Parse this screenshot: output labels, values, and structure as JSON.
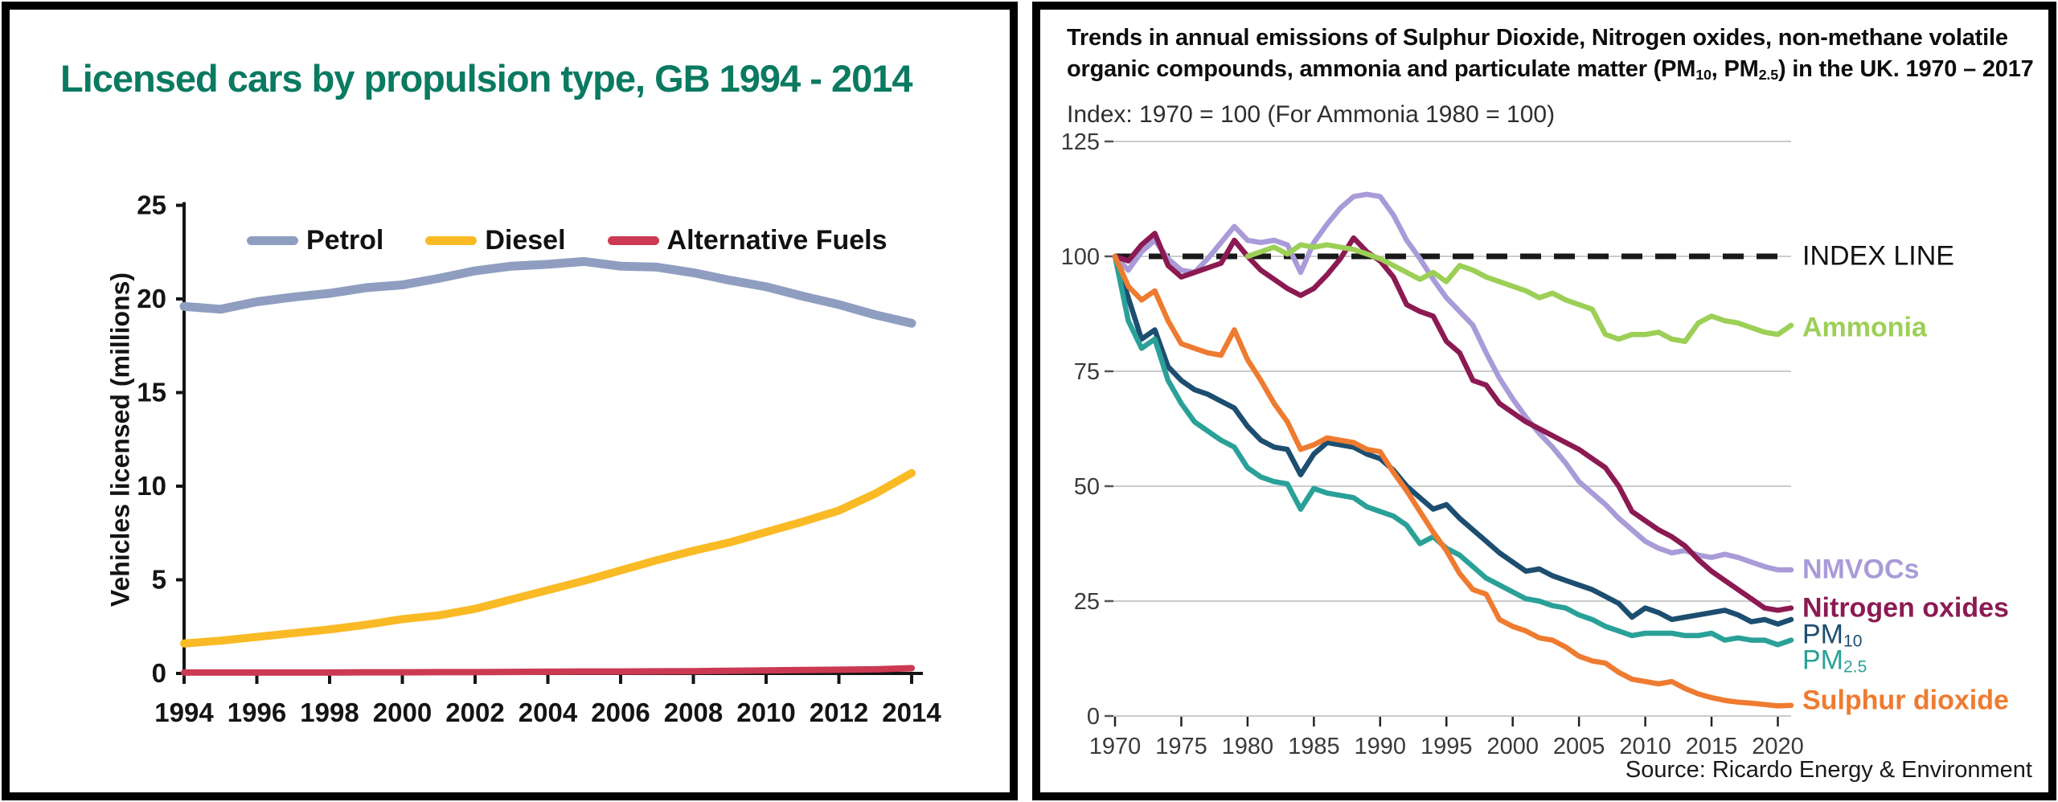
{
  "page": {
    "background": "#ffffff",
    "panel_border_color": "#000000"
  },
  "chart_data": [
    {
      "type": "line",
      "panel": "left",
      "title": "Licensed cars by propulsion type, GB 1994 - 2014",
      "title_color": "#0a7a61",
      "ylabel": "Vehicles licensed (millions)",
      "xlabel": "",
      "x": {
        "start": 1994,
        "end": 2014,
        "step": 1
      },
      "xlim": [
        1994,
        2014
      ],
      "ylim": [
        0,
        25
      ],
      "yticks": [
        0,
        5,
        10,
        15,
        20,
        25
      ],
      "xticks": [
        1994,
        1996,
        1998,
        2000,
        2002,
        2004,
        2006,
        2008,
        2010,
        2012,
        2014
      ],
      "grid": false,
      "legend_position": "top-inside",
      "axis_color": "#141414",
      "series": [
        {
          "name": "Petrol",
          "color": "#8f9ec0",
          "values": [
            19.6,
            19.45,
            19.85,
            20.1,
            20.3,
            20.6,
            20.75,
            21.1,
            21.5,
            21.75,
            21.85,
            22.0,
            21.75,
            21.7,
            21.4,
            21.0,
            20.65,
            20.15,
            19.7,
            19.15,
            18.7
          ]
        },
        {
          "name": "Diesel",
          "color": "#f9ba25",
          "values": [
            1.6,
            1.75,
            1.95,
            2.15,
            2.35,
            2.6,
            2.9,
            3.1,
            3.45,
            3.95,
            4.45,
            4.95,
            5.5,
            6.05,
            6.55,
            7.0,
            7.55,
            8.1,
            8.7,
            9.6,
            10.7
          ]
        },
        {
          "name": "Alternative Fuels",
          "color": "#cb3a52",
          "values": [
            0.05,
            0.05,
            0.05,
            0.05,
            0.05,
            0.06,
            0.06,
            0.07,
            0.07,
            0.08,
            0.09,
            0.1,
            0.1,
            0.11,
            0.12,
            0.14,
            0.16,
            0.18,
            0.2,
            0.22,
            0.28
          ]
        }
      ]
    },
    {
      "type": "line",
      "panel": "right",
      "title_parts": [
        {
          "t": "Trends in annual emissions of Sulphur Dioxide, Nitrogen oxides, non-methane volatile organic compounds, ammonia and particulate matter (PM"
        },
        {
          "t": "10",
          "sub": true
        },
        {
          "t": ", PM"
        },
        {
          "t": "2.5",
          "sub": true
        },
        {
          "t": ") in the UK. 1970 – 2017"
        }
      ],
      "subtitle": "Index: 1970 = 100 (For Ammonia 1980 = 100)",
      "source": "Source: Ricardo Energy & Environment",
      "x": {
        "start": 1970,
        "end": 2021,
        "step": 1
      },
      "xlim": [
        1970,
        2021.5
      ],
      "ylim": [
        0,
        125
      ],
      "yticks": [
        0,
        25,
        50,
        75,
        100,
        125
      ],
      "xticks": [
        1970,
        1975,
        1980,
        1985,
        1990,
        1995,
        2000,
        2005,
        2010,
        2015,
        2020
      ],
      "grid": true,
      "grid_color": "#cbcbcb",
      "tick_label_color": "#3a3a3a",
      "index_line": {
        "value": 100,
        "label": "INDEX LINE",
        "color": "#191919"
      },
      "series": [
        {
          "name": "NMVOCs",
          "color": "#a99bd8",
          "start_year": 1970,
          "label_parts": [
            {
              "t": "NMVOCs"
            }
          ],
          "label_bold": true,
          "label_y_value": 31.8,
          "values": [
            100,
            97,
            101,
            103.5,
            99.5,
            97,
            96.5,
            99.5,
            103,
            106.5,
            103.5,
            103,
            103.5,
            102.5,
            96.5,
            103,
            107,
            110.5,
            113,
            113.5,
            113,
            109,
            103.5,
            99.5,
            95,
            91,
            88,
            85,
            79,
            73.5,
            69,
            65,
            61.5,
            58.5,
            55,
            51,
            48.5,
            46,
            43,
            40.5,
            38,
            36.5,
            35.5,
            36,
            35,
            34.5,
            35.2,
            34.5,
            33.5,
            32.5,
            31.8,
            31.8
          ]
        },
        {
          "name": "Nitrogen oxides",
          "color": "#8c1a52",
          "start_year": 1970,
          "label_parts": [
            {
              "t": "Nitrogen oxides"
            }
          ],
          "label_bold": true,
          "label_y_value": 23.4,
          "values": [
            100,
            99,
            102.5,
            105,
            98,
            95.5,
            96.5,
            97.5,
            98.5,
            103.5,
            100,
            97,
            95,
            93,
            91.5,
            93,
            96,
            99.5,
            104,
            101,
            99,
            95.5,
            89.5,
            88,
            87,
            81.5,
            79,
            73,
            72,
            68,
            66,
            64,
            62.5,
            61,
            59.5,
            58,
            56,
            54,
            50,
            44.5,
            42.5,
            40.5,
            39,
            37,
            34,
            31.5,
            29.5,
            27.5,
            25.5,
            23.5,
            23,
            23.5
          ]
        },
        {
          "name": "Ammonia",
          "color": "#9ccf56",
          "start_year": 1980,
          "label_parts": [
            {
              "t": "Ammonia"
            }
          ],
          "label_bold": true,
          "label_y_value": 84.5,
          "values": [
            100,
            101,
            102,
            100.5,
            102.5,
            102,
            102.5,
            102,
            101.5,
            100.5,
            99.5,
            98,
            96.5,
            95,
            96.5,
            94.5,
            98,
            97,
            95.5,
            94.5,
            93.5,
            92.5,
            91,
            92,
            90.5,
            89.5,
            88.5,
            83,
            82,
            83,
            83,
            83.5,
            82,
            81.5,
            85.5,
            87,
            86,
            85.5,
            84.5,
            83.5,
            83,
            85
          ]
        },
        {
          "name": "PM10",
          "color": "#1d4e70",
          "start_year": 1970,
          "label_parts": [
            {
              "t": "PM"
            },
            {
              "t": "10",
              "sub": true
            }
          ],
          "label_bold": false,
          "label_y_value": 17.7,
          "values": [
            100,
            91,
            82,
            84,
            76,
            73,
            71,
            70,
            68.5,
            67,
            63,
            60,
            58.5,
            58,
            52.5,
            57,
            59.5,
            59,
            58.5,
            57,
            56,
            53.5,
            50,
            47.5,
            45,
            46,
            43,
            40.5,
            38,
            35.5,
            33.5,
            31.5,
            32,
            30.5,
            29.5,
            28.5,
            27.5,
            26,
            24.5,
            21.5,
            23.5,
            22.5,
            21,
            21.5,
            22,
            22.5,
            23,
            22,
            20.5,
            21,
            20,
            21
          ]
        },
        {
          "name": "PM2.5",
          "color": "#2aa198",
          "start_year": 1970,
          "label_parts": [
            {
              "t": "PM"
            },
            {
              "t": "2.5",
              "sub": true
            }
          ],
          "label_bold": false,
          "label_y_value": 12.1,
          "values": [
            100,
            86,
            80,
            82,
            73,
            68,
            64,
            62,
            60,
            58.5,
            54,
            52,
            51,
            50.5,
            45,
            49.5,
            48.5,
            48,
            47.5,
            45.5,
            44.5,
            43.5,
            41.5,
            37.5,
            39,
            36.5,
            35,
            32.5,
            30,
            28.5,
            27,
            25.5,
            25,
            24,
            23.5,
            22,
            21,
            19.5,
            18.5,
            17.5,
            18,
            18,
            18,
            17.5,
            17.5,
            18,
            16.5,
            17,
            16.5,
            16.5,
            15.5,
            16.5
          ]
        },
        {
          "name": "Sulphur dioxide",
          "color": "#ee7b30",
          "start_year": 1970,
          "label_parts": [
            {
              "t": "Sulphur dioxide"
            }
          ],
          "label_bold": true,
          "label_y_value": 3.3,
          "values": [
            100,
            93.5,
            90.5,
            92.5,
            86,
            81,
            80,
            79,
            78.5,
            84,
            77.5,
            73,
            68,
            64,
            58,
            59,
            60.5,
            60,
            59.5,
            58,
            57.5,
            53,
            49,
            44.5,
            40,
            36,
            31,
            27.5,
            26.5,
            21,
            19.5,
            18.5,
            17,
            16.5,
            15,
            13,
            12,
            11.5,
            9.5,
            8,
            7.5,
            7,
            7.5,
            6,
            4.8,
            4,
            3.4,
            3,
            2.8,
            2.5,
            2.2,
            2.3
          ]
        }
      ]
    }
  ]
}
